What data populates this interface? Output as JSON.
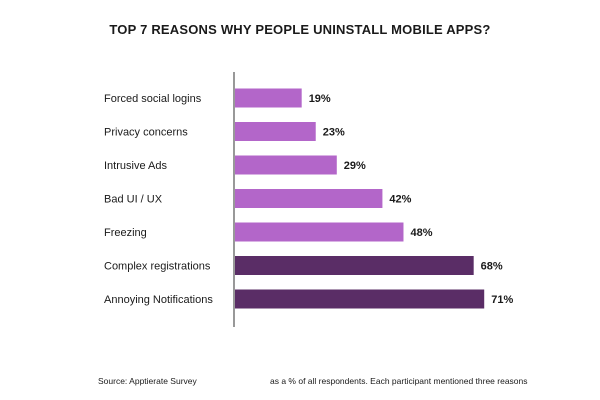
{
  "chart_data": {
    "type": "bar",
    "orientation": "horizontal",
    "title": "TOP 7 REASONS WHY PEOPLE UNINSTALL MOBILE APPS?",
    "categories": [
      "Forced social logins",
      "Privacy concerns",
      "Intrusive Ads",
      "Bad UI / UX",
      "Freezing",
      "Complex registrations",
      "Annoying Notifications"
    ],
    "values": [
      19,
      23,
      29,
      42,
      48,
      68,
      71
    ],
    "value_labels": [
      "19%",
      "23%",
      "29%",
      "42%",
      "48%",
      "68%",
      "71%"
    ],
    "xlim": [
      0,
      100
    ],
    "grid": false,
    "colors": {
      "light": "#b366c9",
      "dark": "#5a2d66"
    },
    "bar_colors": [
      "#b366c9",
      "#b366c9",
      "#b366c9",
      "#b366c9",
      "#b366c9",
      "#5a2d66",
      "#5a2d66"
    ]
  },
  "footer": {
    "source": "Source: Apptierate Survey",
    "note": "as a % of all respondents. Each participant mentioned three reasons"
  }
}
